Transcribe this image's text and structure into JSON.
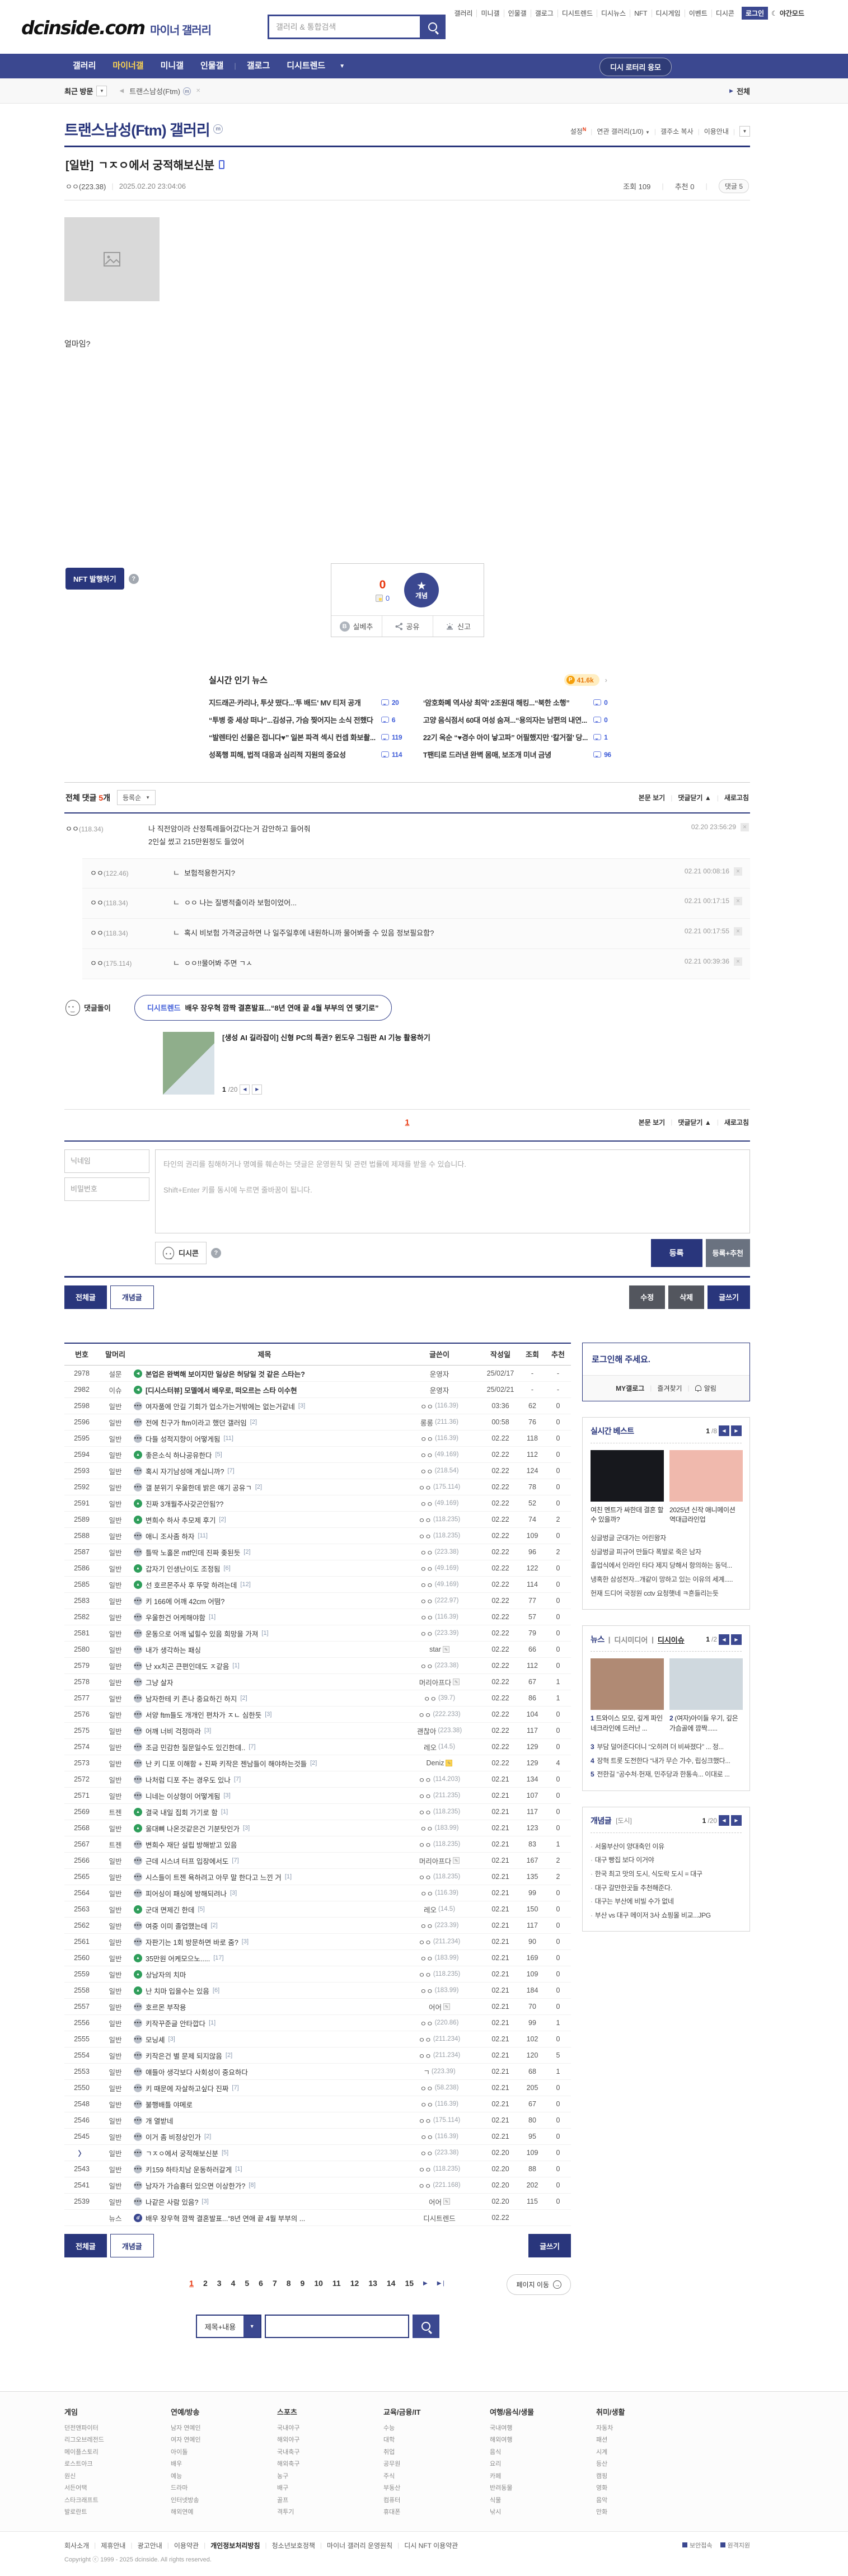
{
  "header": {
    "logo_main": "dcinside.com",
    "logo_sub": "마이너 갤러리",
    "search_placeholder": "갤러리 & 통합검색",
    "top_links": [
      "갤러리",
      "미니갤",
      "인물갤",
      "갤로그",
      "디시트렌드",
      "디시뉴스",
      "NFT",
      "디시게임",
      "이벤트",
      "디시콘"
    ],
    "login_label": "로그인",
    "night_mode": "야간모드"
  },
  "nav": {
    "items": [
      "갤러리",
      "마이너갤",
      "미니갤",
      "인물갤",
      "갤로그",
      "디시트렌드"
    ],
    "active": "마이너갤",
    "lottery_button": "디시 로터리 응모"
  },
  "breadcrumb": {
    "recent_visit": "최근 방문",
    "tab": "트랜스남성(Ftm)",
    "all_link": "전체"
  },
  "gallery": {
    "title": "트랜스남성(Ftm) 갤러리",
    "actions": {
      "settings": "설정",
      "related": "연관 갤러리(1/0)",
      "copy_url": "갤주소 복사",
      "guide": "이용안내"
    }
  },
  "post": {
    "category": "[일반]",
    "title": "ㄱㅈㅇ에서 궁적해보신분",
    "author": "ㅇㅇ(223.38)",
    "date": "2025.02.20 23:04:06",
    "views_label": "조회",
    "views": "109",
    "rec_label": "추천",
    "rec": "0",
    "cmt_label": "댓글",
    "cmt": "5",
    "body_text": "얼마임?"
  },
  "nft": {
    "button": "NFT 발행하기"
  },
  "recommend": {
    "up_count": "0",
    "dccon_count": "0",
    "circle_label": "개념",
    "silbe": "실베추",
    "share": "공유",
    "report": "신고"
  },
  "news_widget": {
    "title": "실시간 인기 뉴스",
    "point": "41.6k",
    "items": [
      {
        "title": "지드래곤·카리나, 투샷 떴다...'투 배드' MV 티저 공개",
        "comments": "20"
      },
      {
        "title": "“투병 중 세상 떠나”...김성규, 가슴 찢어지는 소식 전했다",
        "comments": "6"
      },
      {
        "title": "“발렌타인 선물은 접니다♥” 일본 파격 섹시 컨셉 화보촬...",
        "comments": "119"
      },
      {
        "title": "성폭행 피해, 법적 대응과 심리적 지원의 중요성",
        "comments": "114"
      },
      {
        "title": "‘암호화폐 역사상 최악’ 2조원대 해킹...“북한 소행”",
        "comments": "0"
      },
      {
        "title": "고양 음식점서 60대 여성 숨져...“용의자는 남편의 내연...",
        "comments": "0"
      },
      {
        "title": "22기 옥순 “♥경수 아이 낳고파” 어필했지만 ‘칼거절’ 당...",
        "comments": "1"
      },
      {
        "title": "T팬티로 드러낸 완벽 몸매, 보조개 미녀 금녕",
        "comments": "96"
      }
    ]
  },
  "comments": {
    "total_label": "전체 댓글",
    "count": "5",
    "unit": "개",
    "sort": "등록순",
    "view_post": "본문 보기",
    "fold": "댓글닫기",
    "refresh": "새로고침",
    "page": "1",
    "list": [
      {
        "author": "ㅇㅇ",
        "ip": "118.34",
        "lines": [
          "나 직전암이라 산정특례들어갔다는거 감안하고 들어줘",
          "2인실 썼고 215만원정도 들었어"
        ],
        "time": "02.20 23:56:29",
        "reply": false
      },
      {
        "author": "ㅇㅇ",
        "ip": "122.46",
        "lines": [
          "보험적용한거지?"
        ],
        "time": "02.21 00:08:16",
        "reply": true
      },
      {
        "author": "ㅇㅇ",
        "ip": "118.34",
        "lines": [
          "ㅇㅇ 나는 질병적출이라 보험이었어..."
        ],
        "time": "02.21 00:17:15",
        "reply": true
      },
      {
        "author": "ㅇㅇ",
        "ip": "118.34",
        "lines": [
          "혹시 비보험 가격궁금하면 나 일주일후에 내원하니까 물어봐줄 수 있음 정보필요함?"
        ],
        "time": "02.21 00:17:55",
        "reply": true
      },
      {
        "author": "ㅇㅇ",
        "ip": "175.114",
        "lines": [
          "ㅇㅇ!!물어봐 주면 ㄱㅅ"
        ],
        "time": "02.21 00:39:36",
        "reply": true
      }
    ],
    "bot": {
      "name": "댓글돌이",
      "trend_label": "디시트렌드",
      "trend_title": "배우 장우혁 깜짝 결혼발표...“8년 연애 끝 4월 부부의 연 맺기로”",
      "ai_title": "[생성 AI 길라잡이] 신형 PC의 특권? 윈도우 그림판 AI 기능 활용하기",
      "pager_cur": "1",
      "pager_total": "/20"
    }
  },
  "comment_form": {
    "nickname_placeholder": "닉네임",
    "password_placeholder": "비밀번호",
    "textarea_placeholder": "타인의 권리를 침해하거나 명예를 훼손하는 댓글은 운영원칙 및 관련 법률에 제재를 받을 수 있습니다.\n\nShift+Enter 키를 동시에 누르면 줄바꿈이 됩니다.",
    "dccon": "디시콘",
    "submit": "등록",
    "submit_rec": "등록+추천"
  },
  "list_controls": {
    "all": "전체글",
    "concept": "개념글",
    "edit": "수정",
    "delete": "삭제",
    "write": "글쓰기"
  },
  "board": {
    "columns": [
      "번호",
      "말머리",
      "제목",
      "글쓴이",
      "작성일",
      "조회",
      "추천"
    ],
    "rows": [
      {
        "no": "2978",
        "h": "설문",
        "ic": "v",
        "t": "본업은 완벽해 보이지만 일상은 허당일 것 같은 스타는?",
        "a": "운영자",
        "d": "25/02/17",
        "v": "-",
        "r": "-",
        "f": "notice"
      },
      {
        "no": "2982",
        "h": "이슈",
        "ic": "v",
        "t": "[디시스터뷰] 모델에서 배우로, 떠오르는 스타 이수현",
        "a": "운영자",
        "d": "25/02/21",
        "v": "-",
        "r": "-",
        "f": "notice"
      },
      {
        "no": "2598",
        "h": "일반",
        "ic": "t",
        "t": "여자품에 안길 기회가 업소가는거밖에는 없는거같네",
        "c": "3",
        "a": "ㅇㅇ",
        "ip": "116.39",
        "d": "03:36",
        "v": "62",
        "r": "0"
      },
      {
        "no": "2596",
        "h": "일반",
        "ic": "t",
        "t": "전에 친구가 ftm이라고 했던 갤러임",
        "c": "2",
        "a": "롱롱",
        "ip": "211.36",
        "d": "00:58",
        "v": "76",
        "r": "0"
      },
      {
        "no": "2595",
        "h": "일반",
        "ic": "t",
        "t": "다들 성적지향이 어떻게됨",
        "c": "11",
        "a": "ㅇㅇ",
        "ip": "116.39",
        "d": "02.22",
        "v": "118",
        "r": "0"
      },
      {
        "no": "2594",
        "h": "일반",
        "ic": "i",
        "t": "좋은소식 하나공유한다",
        "c": "5",
        "a": "ㅇㅇ",
        "ip": "49.169",
        "d": "02.22",
        "v": "112",
        "r": "0"
      },
      {
        "no": "2593",
        "h": "일반",
        "ic": "t",
        "t": "혹시 자기남성애 계십니까?",
        "c": "7",
        "a": "ㅇㅇ",
        "ip": "218.54",
        "d": "02.22",
        "v": "124",
        "r": "0"
      },
      {
        "no": "2592",
        "h": "일반",
        "ic": "t",
        "t": "갤 분위기 우울한데 밝은 얘기 공유ㄱ",
        "c": "2",
        "a": "ㅇㅇ",
        "ip": "175.114",
        "d": "02.22",
        "v": "78",
        "r": "0"
      },
      {
        "no": "2591",
        "h": "일반",
        "ic": "i",
        "t": "진짜 3개월주사갖곤안됨??",
        "a": "ㅇㅇ",
        "ip": "49.169",
        "d": "02.22",
        "v": "52",
        "r": "0"
      },
      {
        "no": "2589",
        "h": "일반",
        "ic": "i",
        "t": "변희수 하사 추모제 후기",
        "c": "2",
        "a": "ㅇㅇ",
        "ip": "118.235",
        "d": "02.22",
        "v": "74",
        "r": "2"
      },
      {
        "no": "2588",
        "h": "일반",
        "ic": "t",
        "t": "애니 조사좀 하자",
        "c": "11",
        "a": "ㅇㅇ",
        "ip": "118.235",
        "d": "02.22",
        "v": "109",
        "r": "0"
      },
      {
        "no": "2587",
        "h": "일반",
        "ic": "t",
        "t": "틀딱 노홀몬 mtf인데 진짜 좆된듯",
        "c": "2",
        "a": "ㅇㅇ",
        "ip": "223.38",
        "d": "02.22",
        "v": "96",
        "r": "2"
      },
      {
        "no": "2586",
        "h": "일반",
        "ic": "i",
        "t": "갑자기 인생난이도 조정됨",
        "c": "6",
        "a": "ㅇㅇ",
        "ip": "49.169",
        "d": "02.22",
        "v": "122",
        "r": "0"
      },
      {
        "no": "2585",
        "h": "일반",
        "ic": "i",
        "t": "선 호르몬주사 후 뚜맞 하려는데",
        "c": "12",
        "a": "ㅇㅇ",
        "ip": "49.169",
        "d": "02.22",
        "v": "114",
        "r": "0"
      },
      {
        "no": "2583",
        "h": "일반",
        "ic": "t",
        "t": "키 166에 어깨 42cm 어떰?",
        "a": "ㅇㅇ",
        "ip": "222.97",
        "d": "02.22",
        "v": "77",
        "r": "0"
      },
      {
        "no": "2582",
        "h": "일반",
        "ic": "t",
        "t": "우울한건 어케해야함",
        "c": "1",
        "a": "ㅇㅇ",
        "ip": "116.39",
        "d": "02.22",
        "v": "57",
        "r": "0"
      },
      {
        "no": "2581",
        "h": "일반",
        "ic": "t",
        "t": "운동으로 어깨 넓힐수 있음 희망을 가져",
        "c": "1",
        "a": "ㅇㅇ",
        "ip": "223.39",
        "d": "02.22",
        "v": "79",
        "r": "0"
      },
      {
        "no": "2580",
        "h": "일반",
        "ic": "t",
        "t": "내가 생각하는 패싱",
        "a": "star",
        "g": "w",
        "d": "02.22",
        "v": "66",
        "r": "0"
      },
      {
        "no": "2579",
        "h": "일반",
        "ic": "t",
        "t": "난 xx치곤 큰편인데도 ㅈ같음",
        "c": "1",
        "a": "ㅇㅇ",
        "ip": "223.38",
        "d": "02.22",
        "v": "112",
        "r": "0"
      },
      {
        "no": "2578",
        "h": "일반",
        "ic": "t",
        "t": "그냥 살자",
        "a": "머리아프다",
        "g": "w",
        "d": "02.22",
        "v": "67",
        "r": "1"
      },
      {
        "no": "2577",
        "h": "일반",
        "ic": "t",
        "t": "남자한테 키 존나 중요하긴 하지",
        "c": "2",
        "a": "ㅇㅇ",
        "ip": "39.7",
        "d": "02.22",
        "v": "86",
        "r": "1"
      },
      {
        "no": "2576",
        "h": "일반",
        "ic": "t",
        "t": "서양 ftm들도 개개인 편차가 ㅈㄴ 심한듯",
        "c": "3",
        "a": "ㅇㅇ",
        "ip": "222.233",
        "d": "02.22",
        "v": "104",
        "r": "0"
      },
      {
        "no": "2575",
        "h": "일반",
        "ic": "t",
        "t": "어깨 너비 걱정마라",
        "c": "3",
        "a": "괜찮아",
        "ip": "223.38",
        "d": "02.22",
        "v": "117",
        "r": "0"
      },
      {
        "no": "2574",
        "h": "일반",
        "ic": "t",
        "t": "조금 민감한 질문일수도 있긴한데..",
        "c": "7",
        "a": "레오",
        "ip": "14.5",
        "d": "02.22",
        "v": "129",
        "r": "0"
      },
      {
        "no": "2573",
        "h": "일반",
        "ic": "t",
        "t": "난 키 디포 이해함 + 진짜 키작은 젠남들이 해야하는것들",
        "c": "2",
        "a": "Deniz",
        "g": "y",
        "d": "02.22",
        "v": "129",
        "r": "4"
      },
      {
        "no": "2572",
        "h": "일반",
        "ic": "t",
        "t": "나처럼 디포 주는 경우도 있나",
        "c": "7",
        "a": "ㅇㅇ",
        "ip": "114.203",
        "d": "02.21",
        "v": "134",
        "r": "0"
      },
      {
        "no": "2571",
        "h": "일반",
        "ic": "t",
        "t": "니네는 이상형이 어떻게됨",
        "c": "3",
        "a": "ㅇㅇ",
        "ip": "211.235",
        "d": "02.21",
        "v": "107",
        "r": "0"
      },
      {
        "no": "2569",
        "h": "트젠",
        "ic": "i",
        "t": "결국 내일 집회 가기로 함",
        "c": "1",
        "a": "ㅇㅇ",
        "ip": "118.235",
        "d": "02.21",
        "v": "117",
        "r": "0"
      },
      {
        "no": "2568",
        "h": "일반",
        "ic": "i",
        "t": "울대뼈 나온것같은건 기분탓인가",
        "c": "3",
        "a": "ㅇㅇ",
        "ip": "183.99",
        "d": "02.21",
        "v": "123",
        "r": "0"
      },
      {
        "no": "2567",
        "h": "트젠",
        "ic": "t",
        "t": "변희수 재단 설립 방해받고 있음",
        "a": "ㅇㅇ",
        "ip": "118.235",
        "d": "02.21",
        "v": "83",
        "r": "1"
      },
      {
        "no": "2566",
        "h": "일반",
        "ic": "t",
        "t": "근데 시스녀 터프 입장에서도",
        "c": "7",
        "a": "머리아프다",
        "g": "w",
        "d": "02.21",
        "v": "167",
        "r": "2"
      },
      {
        "no": "2565",
        "h": "일반",
        "ic": "t",
        "t": "시스들이 트젠 욕하려고 아무 말 한다고 느낀 거",
        "c": "1",
        "a": "ㅇㅇ",
        "ip": "118.235",
        "d": "02.21",
        "v": "135",
        "r": "2"
      },
      {
        "no": "2564",
        "h": "일반",
        "ic": "t",
        "t": "피어싱이 패싱에 방해되려나",
        "c": "3",
        "a": "ㅇㅇ",
        "ip": "116.39",
        "d": "02.21",
        "v": "99",
        "r": "0"
      },
      {
        "no": "2563",
        "h": "일반",
        "ic": "i",
        "t": "군대 면제긴 한데",
        "c": "5",
        "a": "레오",
        "ip": "14.5",
        "d": "02.21",
        "v": "150",
        "r": "0"
      },
      {
        "no": "2562",
        "h": "일반",
        "ic": "t",
        "t": "여중 이미 졸업했는데",
        "c": "2",
        "a": "ㅇㅇ",
        "ip": "223.39",
        "d": "02.21",
        "v": "117",
        "r": "0"
      },
      {
        "no": "2561",
        "h": "일반",
        "ic": "t",
        "t": "자판기는 1회 방문하면 바로 줌?",
        "c": "3",
        "a": "ㅇㅇ",
        "ip": "211.234",
        "d": "02.21",
        "v": "90",
        "r": "0"
      },
      {
        "no": "2560",
        "h": "일반",
        "ic": "i",
        "t": "35만원 어케모으노.....",
        "c": "17",
        "a": "ㅇㅇ",
        "ip": "183.99",
        "d": "02.21",
        "v": "169",
        "r": "0"
      },
      {
        "no": "2559",
        "h": "일반",
        "ic": "i",
        "t": "상남자의 치마",
        "a": "ㅇㅇ",
        "ip": "118.235",
        "d": "02.21",
        "v": "109",
        "r": "0"
      },
      {
        "no": "2558",
        "h": "일반",
        "ic": "i",
        "t": "난 치마 입을수는 있음",
        "c": "6",
        "a": "ㅇㅇ",
        "ip": "183.99",
        "d": "02.21",
        "v": "184",
        "r": "0"
      },
      {
        "no": "2557",
        "h": "일반",
        "ic": "t",
        "t": "호르몬 부작용",
        "a": "어어",
        "g": "w",
        "d": "02.21",
        "v": "70",
        "r": "0"
      },
      {
        "no": "2556",
        "h": "일반",
        "ic": "t",
        "t": "키작꾸준글 안타깝다",
        "c": "1",
        "a": "ㅇㅇ",
        "ip": "220.86",
        "d": "02.21",
        "v": "99",
        "r": "1"
      },
      {
        "no": "2555",
        "h": "일반",
        "ic": "t",
        "t": "모닝셰",
        "c": "3",
        "a": "ㅇㅇ",
        "ip": "211.234",
        "d": "02.21",
        "v": "102",
        "r": "0"
      },
      {
        "no": "2554",
        "h": "일반",
        "ic": "t",
        "t": "키작은건 별 문제 되지않음",
        "c": "2",
        "a": "ㅇㅇ",
        "ip": "211.234",
        "d": "02.21",
        "v": "120",
        "r": "5"
      },
      {
        "no": "2553",
        "h": "일반",
        "ic": "t",
        "t": "얘들아 생각보다 사회성이 중요하다",
        "a": "ㄱ",
        "ip": "223.39",
        "d": "02.21",
        "v": "68",
        "r": "1"
      },
      {
        "no": "2550",
        "h": "일반",
        "ic": "t",
        "t": "키 때문에 자살하고싶다 진짜",
        "c": "7",
        "a": "ㅇㅇ",
        "ip": "58.238",
        "d": "02.21",
        "v": "205",
        "r": "0"
      },
      {
        "no": "2548",
        "h": "일반",
        "ic": "t",
        "t": "불행배틀 야메로",
        "a": "ㅇㅇ",
        "ip": "116.39",
        "d": "02.21",
        "v": "67",
        "r": "0"
      },
      {
        "no": "2546",
        "h": "일반",
        "ic": "t",
        "t": "개 열받네",
        "a": "ㅇㅇ",
        "ip": "175.114",
        "d": "02.21",
        "v": "80",
        "r": "0"
      },
      {
        "no": "2545",
        "h": "일반",
        "ic": "t",
        "t": "이거 좀 비정상인가",
        "c": "2",
        "a": "ㅇㅇ",
        "ip": "116.39",
        "d": "02.21",
        "v": "95",
        "r": "0"
      },
      {
        "no": "〉",
        "h": "일반",
        "ic": "t",
        "t": "ㄱㅈㅇ에서 궁적해보신분",
        "c": "5",
        "a": "ㅇㅇ",
        "ip": "223.38",
        "d": "02.20",
        "v": "109",
        "r": "0",
        "f": "cur"
      },
      {
        "no": "2543",
        "h": "일반",
        "ic": "t",
        "t": "키159 하타치남 운동하러갈게",
        "c": "1",
        "a": "ㅇㅇ",
        "ip": "118.235",
        "d": "02.20",
        "v": "88",
        "r": "0"
      },
      {
        "no": "2541",
        "h": "일반",
        "ic": "t",
        "t": "남자가 가슴흉터 있으면 이상한가?",
        "c": "8",
        "a": "ㅇㅇ",
        "ip": "221.168",
        "d": "02.20",
        "v": "202",
        "r": "0"
      },
      {
        "no": "2539",
        "h": "일반",
        "ic": "t",
        "t": "나같은 사람 있음?",
        "c": "3",
        "a": "어어",
        "g": "w",
        "d": "02.20",
        "v": "115",
        "r": "0"
      },
      {
        "no": "",
        "h": "뉴스",
        "ic": "n",
        "t": "배우 장우혁 깜짝 결혼발표...“8년 연애 끝 4월 부부의 ...",
        "a": "디시트렌드",
        "d": "02.22",
        "v": "",
        "r": "",
        "f": "news"
      }
    ]
  },
  "sidebar": {
    "login": {
      "title": "로그인해 주세요.",
      "links": [
        "MY갤로그",
        "즐겨찾기",
        "알림"
      ]
    },
    "best": {
      "title": "실시간 베스트",
      "pager_cur": "1",
      "pager_total": "/8",
      "thumbs": [
        {
          "caption": "여친 멘트가 싸한데 결혼 할수 있을까?"
        },
        {
          "caption": "2025년 신작 애니메이션 역대급라인업"
        }
      ],
      "items": [
        "싱글벙글 군대가는 어린왕자",
        "싱글벙글 피규어 만들다 폭발로 죽은 남자",
        "졸업식에서 인라인 타다 제지 당해서 항의하는 동덕...",
        "냉혹한 삼성전자...개같이 망하고 있는 이유의 세계.....",
        "헌재 드디어 국정원 cctv 요청햇네 ㅋ흔들리는듯"
      ]
    },
    "news": {
      "tabs": [
        "뉴스",
        "디시미디어",
        "디시이슈"
      ],
      "active_tab": "디시이슈",
      "pager_cur": "1",
      "pager_total": "/2",
      "thumbs": [
        {
          "n": "1",
          "caption": "트와이스 모모, 깊게 파인 네크라인에 드러난 ..."
        },
        {
          "n": "2",
          "caption": "(여자)아이들 우기, 깊은 가슴골에 깜짝......"
        }
      ],
      "items": [
        {
          "n": "3",
          "title": "부담 덜어준다더니 “오히려 더 비싸졌다” ... 정..."
        },
        {
          "n": "4",
          "title": "장혁 트롯 도전한다 “내가 무슨 가수, 립싱크했다..."
        },
        {
          "n": "5",
          "title": "전한길 “공수처·헌재, 민주당과 한통속... 이대로 ..."
        }
      ]
    },
    "concept": {
      "title": "개념글",
      "category": "[도시]",
      "pager_cur": "1",
      "pager_total": "/20",
      "items": [
        "서울부산이 양대축인 이유",
        "대구 빵집 보다 이거야",
        "한국 최고 맛의 도시, 식도락 도시 = 대구",
        "대구 갈만한곳들 추천해준다.",
        "대구는 부산에 비빌 수가 없네",
        "부산 vs 대구 메이저 3사 쇼핑몰 비교...JPG"
      ]
    }
  },
  "pagination": {
    "pages": [
      "1",
      "2",
      "3",
      "4",
      "5",
      "6",
      "7",
      "8",
      "9",
      "10",
      "11",
      "12",
      "13",
      "14",
      "15"
    ],
    "current": "1",
    "page_move": "페이지 이동"
  },
  "search": {
    "category": "제목+내용"
  },
  "footer": {
    "columns": [
      {
        "title": "게임",
        "links": [
          "던전앤파이터",
          "리그오브레전드",
          "메이플스토리",
          "로스트아크",
          "원신",
          "서든어택",
          "스타크래프트",
          "발로란트"
        ]
      },
      {
        "title": "연예/방송",
        "links": [
          "남자 연예인",
          "여자 연예인",
          "아이돌",
          "배우",
          "예능",
          "드라마",
          "인터넷방송",
          "해외연예"
        ]
      },
      {
        "title": "스포츠",
        "links": [
          "국내야구",
          "해외야구",
          "국내축구",
          "해외축구",
          "농구",
          "배구",
          "골프",
          "격투기"
        ]
      },
      {
        "title": "교육/금융/IT",
        "links": [
          "수능",
          "대학",
          "취업",
          "공무원",
          "주식",
          "부동산",
          "컴퓨터",
          "휴대폰"
        ]
      },
      {
        "title": "여행/음식/생물",
        "links": [
          "국내여행",
          "해외여행",
          "음식",
          "요리",
          "카페",
          "반려동물",
          "식물",
          "낚시"
        ]
      },
      {
        "title": "취미/생활",
        "links": [
          "자동차",
          "패션",
          "시계",
          "등산",
          "캠핑",
          "영화",
          "음악",
          "만화"
        ]
      }
    ],
    "legal": [
      "회사소개",
      "제휴안내",
      "광고안내",
      "이용약관",
      "개인정보처리방침",
      "청소년보호정책",
      "마이너 갤러리 운영원칙",
      "디시 NFT 이용약관"
    ],
    "legal_strong": "개인정보처리방침",
    "copyright": "Copyright ⓒ 1999 - 2025 dcinside. All rights reserved.",
    "secure": "보안접속",
    "remote": "원격지원"
  }
}
